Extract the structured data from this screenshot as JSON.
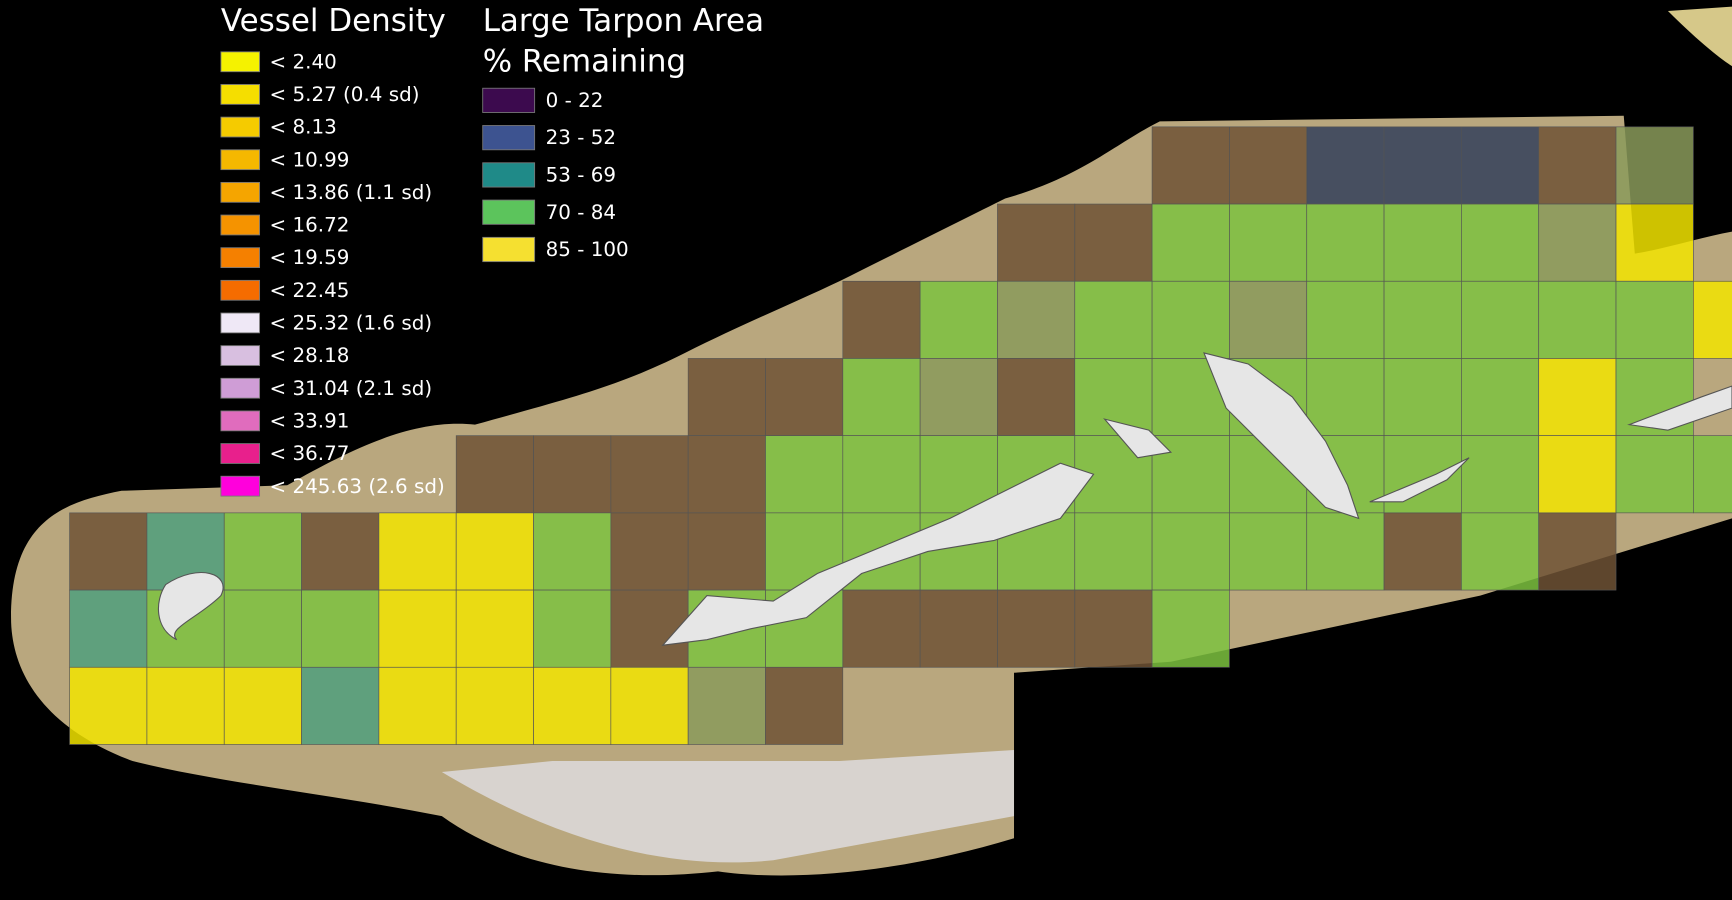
{
  "legends": [
    {
      "title_lines": [
        "Vessel Density"
      ],
      "items": [
        {
          "label": "< 2.40",
          "color": "#f5f200"
        },
        {
          "label": "< 5.27 (0.4 sd)",
          "color": "#f5de00"
        },
        {
          "label": "< 8.13",
          "color": "#f5cb00"
        },
        {
          "label": "< 10.99",
          "color": "#f5b800"
        },
        {
          "label": "< 13.86 (1.1 sd)",
          "color": "#f5a500"
        },
        {
          "label": "< 16.72",
          "color": "#f59300"
        },
        {
          "label": "< 19.59",
          "color": "#f58000"
        },
        {
          "label": "< 22.45",
          "color": "#f56c00"
        },
        {
          "label": "< 25.32 (1.6 sd)",
          "color": "#efe8f6"
        },
        {
          "label": "< 28.18",
          "color": "#d8bfe0"
        },
        {
          "label": "< 31.04 (2.1 sd)",
          "color": "#cf9dd6"
        },
        {
          "label": "< 33.91",
          "color": "#e06cbd"
        },
        {
          "label": "< 36.77",
          "color": "#e8208c"
        },
        {
          "label": "< 245.63 (2.6 sd)",
          "color": "#ff00dc"
        }
      ]
    },
    {
      "title_lines": [
        "Large Tarpon Area",
        "% Remaining"
      ],
      "items": [
        {
          "label": "0 - 22",
          "color": "#3c0a4e"
        },
        {
          "label": "23 - 52",
          "color": "#3d5390"
        },
        {
          "label": "53 - 69",
          "color": "#1f8a88"
        },
        {
          "label": "70 - 84",
          "color": "#5cc45c"
        },
        {
          "label": "85 - 100",
          "color": "#f5e030"
        }
      ]
    }
  ]
}
